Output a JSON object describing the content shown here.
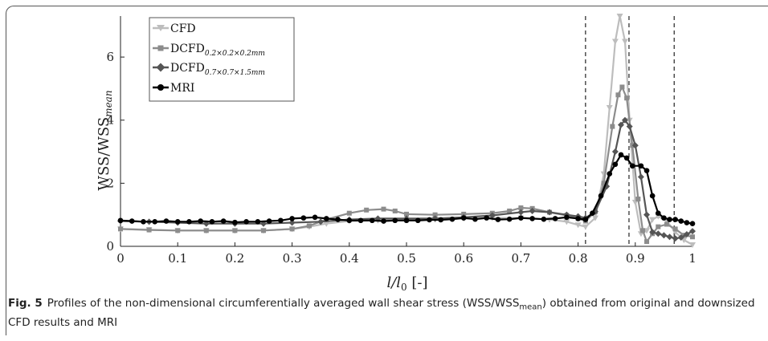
{
  "chart_data": {
    "type": "line",
    "xlabel": "l/l0 [-]",
    "ylabel": "WSS/WSSmean",
    "xlim": [
      0,
      1
    ],
    "ylim": [
      0,
      7.3
    ],
    "xticks": [
      "0",
      "0.1",
      "0.2",
      "0.3",
      "0.4",
      "0.5",
      "0.6",
      "0.7",
      "0.8",
      "0.9",
      "1"
    ],
    "yticks": [
      "0",
      "2",
      "4",
      "6"
    ],
    "vlines": [
      0.813,
      0.889,
      0.968
    ],
    "legend_position": "top-left",
    "series": [
      {
        "name": "CFD",
        "color": "#bdbdbd",
        "marker": "triangle-down",
        "points": [
          [
            0,
            0.55
          ],
          [
            0.05,
            0.53
          ],
          [
            0.1,
            0.5
          ],
          [
            0.15,
            0.5
          ],
          [
            0.2,
            0.5
          ],
          [
            0.25,
            0.5
          ],
          [
            0.3,
            0.55
          ],
          [
            0.33,
            0.62
          ],
          [
            0.36,
            0.72
          ],
          [
            0.4,
            0.8
          ],
          [
            0.45,
            0.82
          ],
          [
            0.5,
            0.83
          ],
          [
            0.55,
            0.85
          ],
          [
            0.6,
            0.88
          ],
          [
            0.65,
            0.9
          ],
          [
            0.7,
            0.9
          ],
          [
            0.75,
            0.85
          ],
          [
            0.78,
            0.78
          ],
          [
            0.8,
            0.68
          ],
          [
            0.813,
            0.62
          ],
          [
            0.83,
            0.9
          ],
          [
            0.845,
            2.3
          ],
          [
            0.855,
            4.4
          ],
          [
            0.865,
            6.5
          ],
          [
            0.873,
            7.3
          ],
          [
            0.882,
            6.5
          ],
          [
            0.89,
            4.0
          ],
          [
            0.9,
            1.4
          ],
          [
            0.91,
            0.4
          ],
          [
            0.92,
            0.5
          ],
          [
            0.93,
            0.85
          ],
          [
            0.94,
            0.95
          ],
          [
            0.955,
            0.8
          ],
          [
            0.97,
            0.45
          ],
          [
            0.985,
            0.2
          ],
          [
            1,
            0.05
          ]
        ]
      },
      {
        "name": "DCFD_{0.2×0.2×0.2mm}",
        "color": "#8c8c8c",
        "marker": "square",
        "points": [
          [
            0,
            0.55
          ],
          [
            0.05,
            0.52
          ],
          [
            0.1,
            0.5
          ],
          [
            0.15,
            0.5
          ],
          [
            0.2,
            0.5
          ],
          [
            0.25,
            0.5
          ],
          [
            0.3,
            0.55
          ],
          [
            0.33,
            0.65
          ],
          [
            0.36,
            0.85
          ],
          [
            0.4,
            1.05
          ],
          [
            0.43,
            1.15
          ],
          [
            0.46,
            1.18
          ],
          [
            0.48,
            1.12
          ],
          [
            0.5,
            1.02
          ],
          [
            0.55,
            1.0
          ],
          [
            0.6,
            1.02
          ],
          [
            0.65,
            1.05
          ],
          [
            0.68,
            1.12
          ],
          [
            0.7,
            1.22
          ],
          [
            0.72,
            1.2
          ],
          [
            0.75,
            1.08
          ],
          [
            0.78,
            0.98
          ],
          [
            0.8,
            0.88
          ],
          [
            0.813,
            0.8
          ],
          [
            0.83,
            1.1
          ],
          [
            0.845,
            2.0
          ],
          [
            0.86,
            3.8
          ],
          [
            0.87,
            4.8
          ],
          [
            0.877,
            5.05
          ],
          [
            0.885,
            4.7
          ],
          [
            0.895,
            3.2
          ],
          [
            0.905,
            1.5
          ],
          [
            0.913,
            0.5
          ],
          [
            0.92,
            0.15
          ],
          [
            0.93,
            0.4
          ],
          [
            0.94,
            0.62
          ],
          [
            0.955,
            0.7
          ],
          [
            0.97,
            0.55
          ],
          [
            0.985,
            0.35
          ],
          [
            1,
            0.3
          ]
        ]
      },
      {
        "name": "DCFD_{0.7×0.7×1.5mm}",
        "color": "#555555",
        "marker": "diamond",
        "points": [
          [
            0,
            0.8
          ],
          [
            0.05,
            0.78
          ],
          [
            0.1,
            0.75
          ],
          [
            0.15,
            0.72
          ],
          [
            0.2,
            0.72
          ],
          [
            0.25,
            0.72
          ],
          [
            0.3,
            0.75
          ],
          [
            0.35,
            0.78
          ],
          [
            0.4,
            0.85
          ],
          [
            0.45,
            0.88
          ],
          [
            0.5,
            0.88
          ],
          [
            0.55,
            0.88
          ],
          [
            0.6,
            0.92
          ],
          [
            0.65,
            0.98
          ],
          [
            0.7,
            1.08
          ],
          [
            0.72,
            1.12
          ],
          [
            0.75,
            1.08
          ],
          [
            0.78,
            1.0
          ],
          [
            0.8,
            0.95
          ],
          [
            0.813,
            0.9
          ],
          [
            0.83,
            1.1
          ],
          [
            0.85,
            1.9
          ],
          [
            0.865,
            3.0
          ],
          [
            0.875,
            3.85
          ],
          [
            0.882,
            4.0
          ],
          [
            0.89,
            3.8
          ],
          [
            0.9,
            3.2
          ],
          [
            0.91,
            2.2
          ],
          [
            0.92,
            1.0
          ],
          [
            0.93,
            0.45
          ],
          [
            0.94,
            0.4
          ],
          [
            0.95,
            0.35
          ],
          [
            0.96,
            0.3
          ],
          [
            0.97,
            0.25
          ],
          [
            0.98,
            0.28
          ],
          [
            0.99,
            0.38
          ],
          [
            1,
            0.48
          ]
        ]
      },
      {
        "name": "MRI",
        "color": "#000000",
        "marker": "circle",
        "points": [
          [
            0,
            0.82
          ],
          [
            0.02,
            0.8
          ],
          [
            0.04,
            0.78
          ],
          [
            0.06,
            0.78
          ],
          [
            0.08,
            0.8
          ],
          [
            0.1,
            0.78
          ],
          [
            0.12,
            0.78
          ],
          [
            0.14,
            0.8
          ],
          [
            0.16,
            0.78
          ],
          [
            0.18,
            0.8
          ],
          [
            0.2,
            0.76
          ],
          [
            0.22,
            0.78
          ],
          [
            0.24,
            0.78
          ],
          [
            0.26,
            0.8
          ],
          [
            0.28,
            0.82
          ],
          [
            0.3,
            0.88
          ],
          [
            0.32,
            0.9
          ],
          [
            0.34,
            0.92
          ],
          [
            0.36,
            0.88
          ],
          [
            0.38,
            0.85
          ],
          [
            0.4,
            0.82
          ],
          [
            0.42,
            0.82
          ],
          [
            0.44,
            0.82
          ],
          [
            0.46,
            0.8
          ],
          [
            0.48,
            0.82
          ],
          [
            0.5,
            0.82
          ],
          [
            0.52,
            0.82
          ],
          [
            0.54,
            0.84
          ],
          [
            0.56,
            0.84
          ],
          [
            0.58,
            0.86
          ],
          [
            0.6,
            0.9
          ],
          [
            0.62,
            0.86
          ],
          [
            0.64,
            0.9
          ],
          [
            0.66,
            0.85
          ],
          [
            0.68,
            0.86
          ],
          [
            0.7,
            0.9
          ],
          [
            0.72,
            0.88
          ],
          [
            0.74,
            0.86
          ],
          [
            0.76,
            0.88
          ],
          [
            0.78,
            0.92
          ],
          [
            0.8,
            0.88
          ],
          [
            0.813,
            0.85
          ],
          [
            0.825,
            1.05
          ],
          [
            0.84,
            1.6
          ],
          [
            0.855,
            2.3
          ],
          [
            0.865,
            2.6
          ],
          [
            0.875,
            2.9
          ],
          [
            0.885,
            2.8
          ],
          [
            0.895,
            2.55
          ],
          [
            0.91,
            2.55
          ],
          [
            0.92,
            2.4
          ],
          [
            0.93,
            1.6
          ],
          [
            0.94,
            1.05
          ],
          [
            0.95,
            0.9
          ],
          [
            0.96,
            0.85
          ],
          [
            0.97,
            0.85
          ],
          [
            0.98,
            0.8
          ],
          [
            0.99,
            0.75
          ],
          [
            1,
            0.72
          ]
        ]
      }
    ]
  },
  "legend": {
    "cfd": "CFD",
    "dcfd1_base": "DCFD",
    "dcfd1_sub": "0.2×0.2×0.2mm",
    "dcfd2_base": "DCFD",
    "dcfd2_sub": "0.7×0.7×1.5mm",
    "mri": "MRI"
  },
  "axes": {
    "ylabel_base": "WSS/WSS",
    "ylabel_sub": "mean",
    "xlabel_main": "l/l",
    "xlabel_sub": "0",
    "xlabel_unit": " [-]"
  },
  "caption": {
    "label": "Fig. 5",
    "text_a": "Profiles of the non-dimensional circumferentially averaged wall shear stress (WSS/WSS",
    "text_sub": "mean",
    "text_b": ") obtained from original and downsized CFD results and MRI"
  }
}
